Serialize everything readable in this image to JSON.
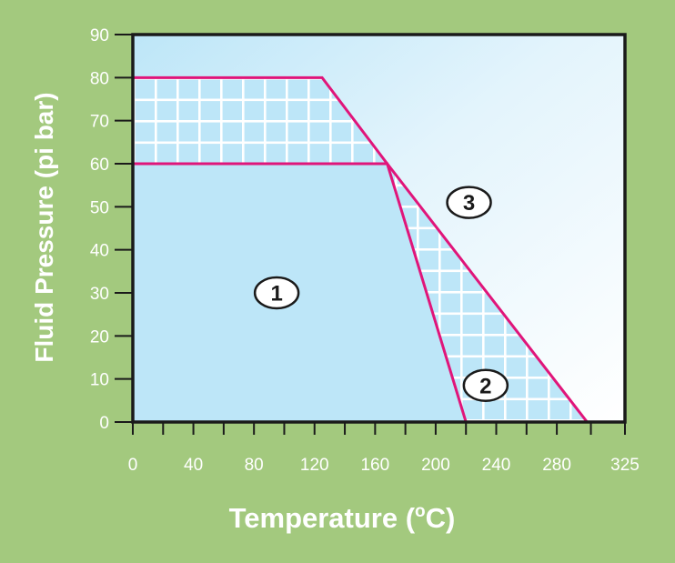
{
  "colors": {
    "background": "#a3c97e",
    "region_1": "#bde6f8",
    "grid_hatch": "#ffffff",
    "boundary_lines": "#e0157a",
    "frame": "#1a1a1a"
  },
  "chart_data": {
    "type": "line",
    "title": "",
    "xlabel": "Temperature (",
    "xlabel_sup": "o",
    "xlabel_suffix": "C)",
    "ylabel": "Fluid Pressure (pi bar)",
    "xlim": [
      0,
      325
    ],
    "ylim": [
      0,
      90
    ],
    "x_ticks": [
      0,
      40,
      80,
      120,
      160,
      200,
      240,
      280,
      325
    ],
    "y_ticks": [
      0,
      10,
      20,
      30,
      40,
      50,
      60,
      70,
      80,
      90
    ],
    "grid": "hatched zones only",
    "series": [
      {
        "x": [
          0,
          125,
          168,
          300
        ],
        "y": [
          80,
          80,
          60,
          0
        ]
      },
      {
        "x": [
          0,
          168,
          220
        ],
        "y": [
          60,
          60,
          0
        ]
      }
    ],
    "regions": [
      {
        "label": "1",
        "x": 95,
        "y": 30
      },
      {
        "label": "2",
        "x": 233,
        "y": 8.5
      },
      {
        "label": "3",
        "x": 222,
        "y": 51
      }
    ]
  }
}
